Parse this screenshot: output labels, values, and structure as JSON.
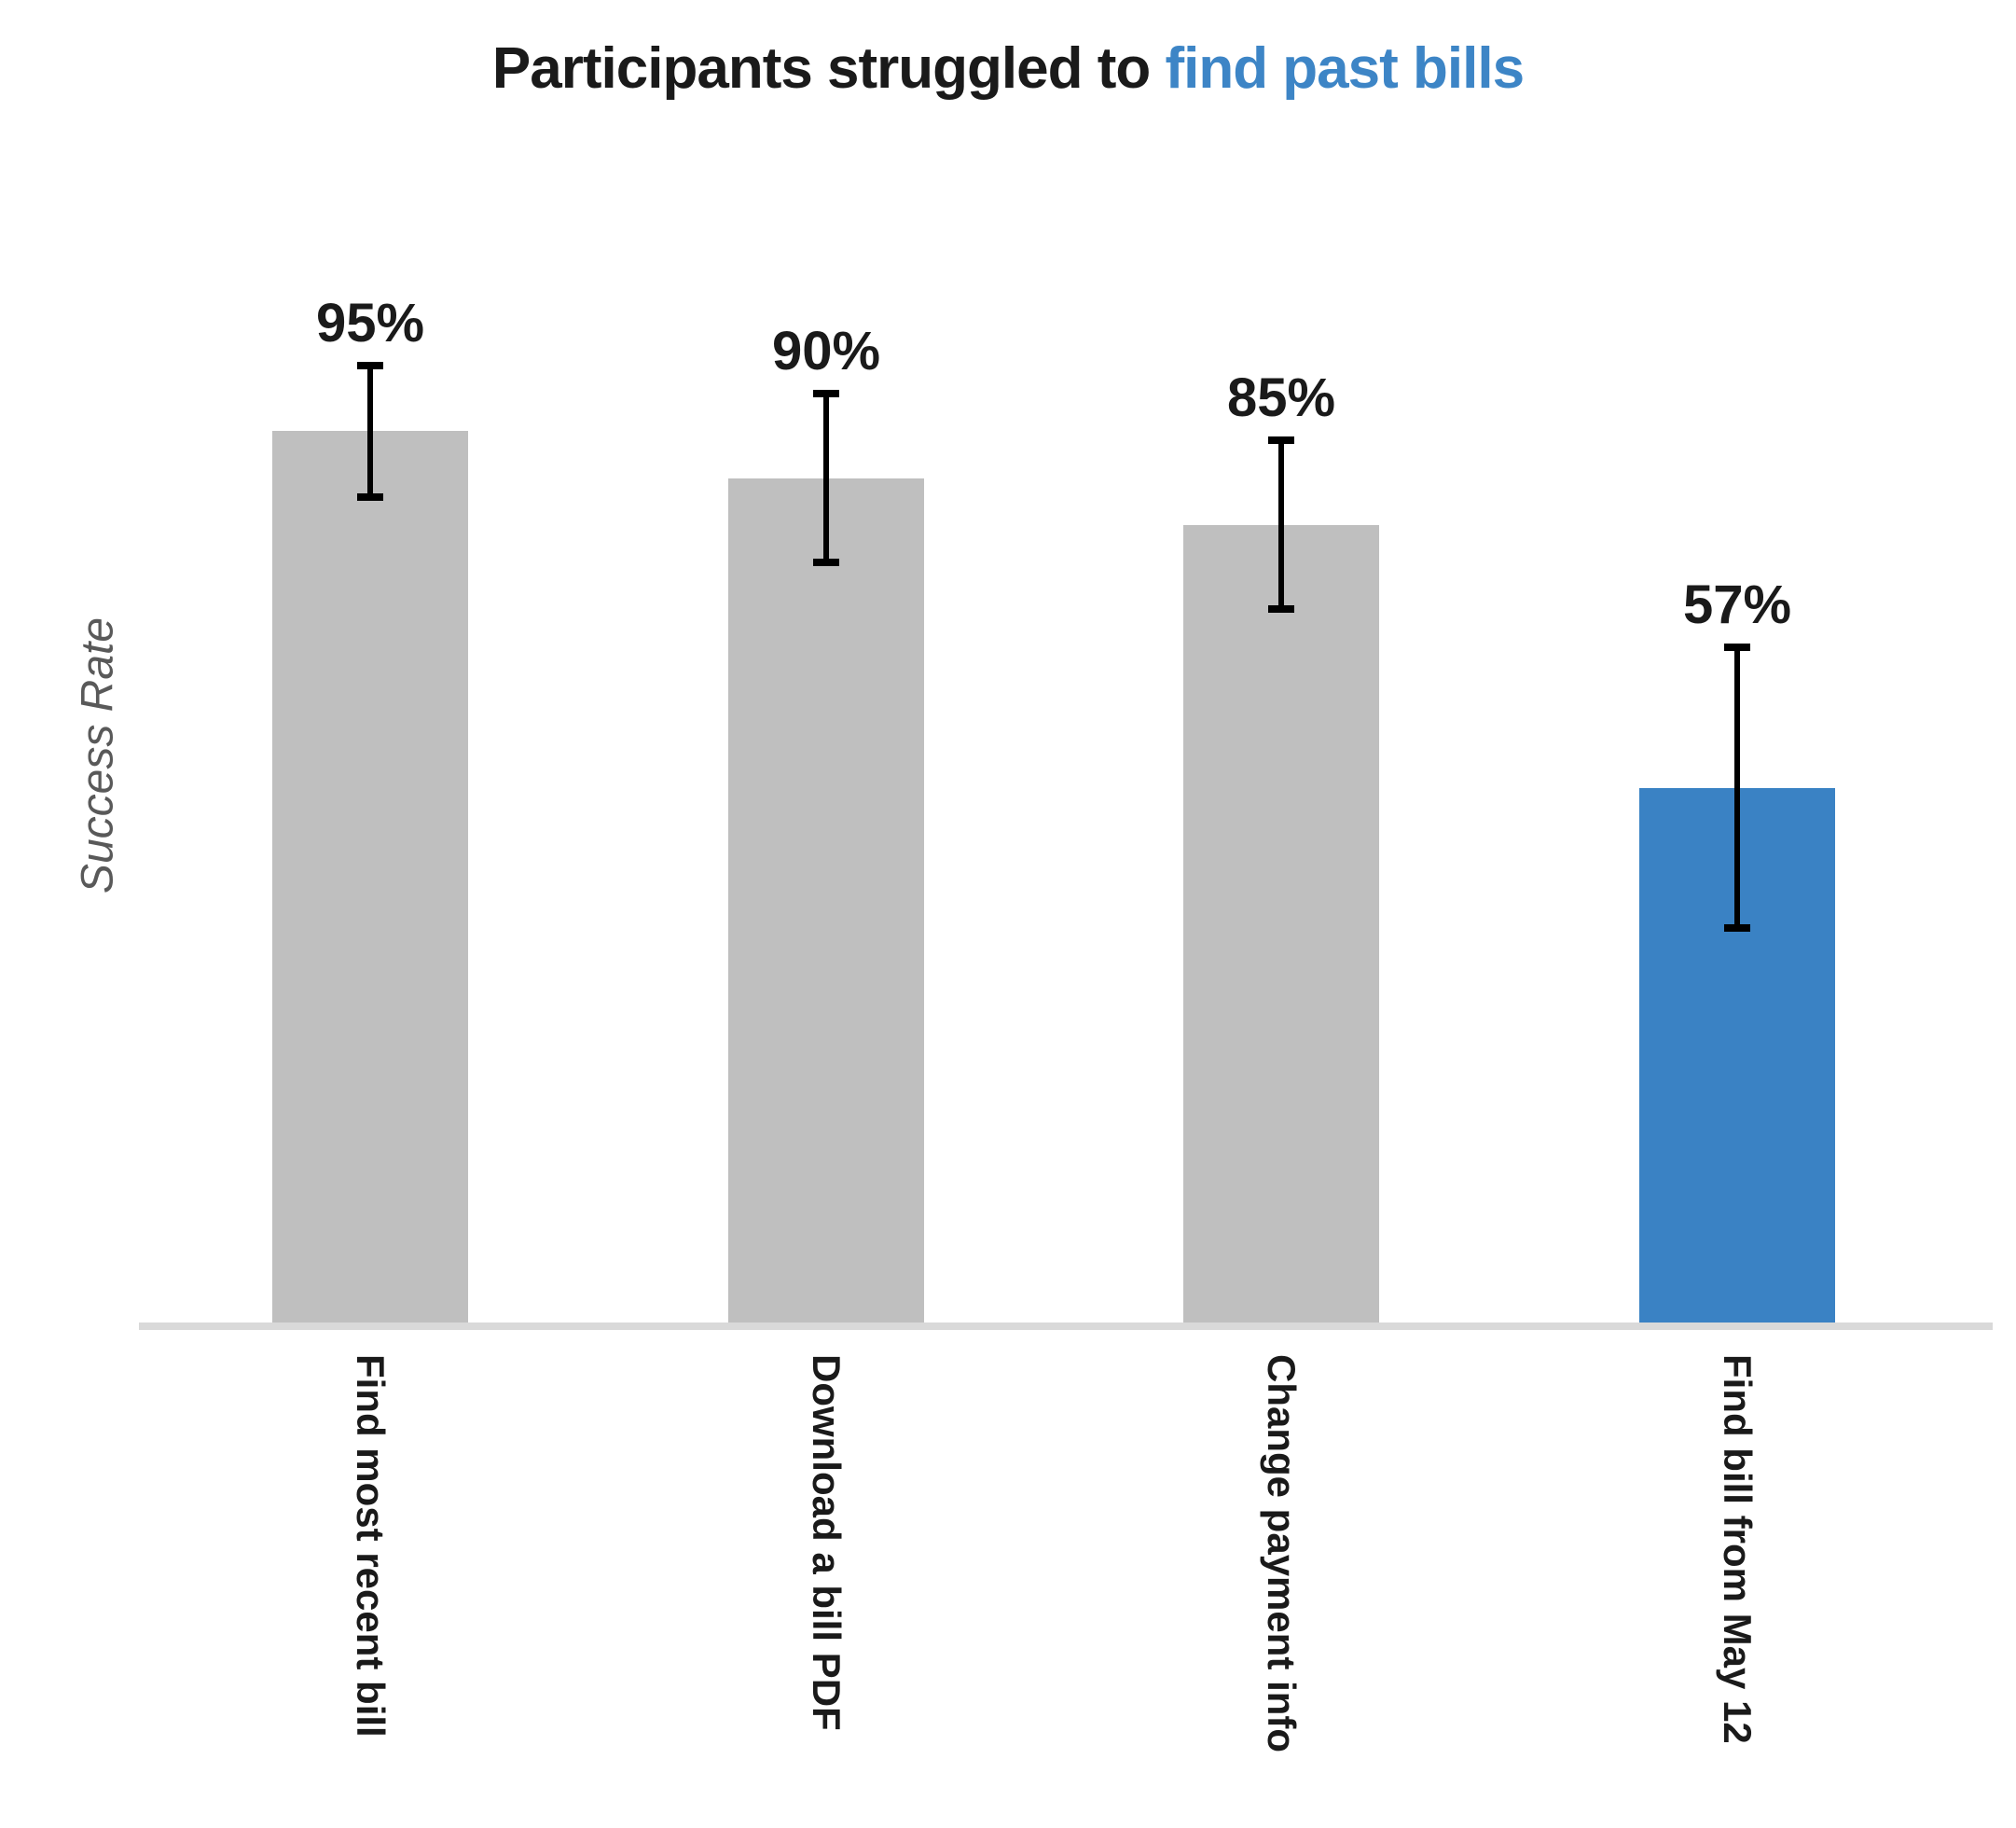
{
  "title": {
    "prefix": "Participants struggled to ",
    "highlight": "find past bills"
  },
  "y_axis_label": "Success Rate",
  "colors": {
    "bar_default": "#bfbfbf",
    "bar_highlight": "#3a82c4",
    "title_highlight": "#3d85c6",
    "axis_line": "#d9d9d9",
    "error_bar": "#000000",
    "text_primary": "#1a1a1a",
    "text_muted": "#595959"
  },
  "chart_data": {
    "type": "bar",
    "title": "Participants struggled to find past bills",
    "xlabel": "",
    "ylabel": "Success Rate",
    "categories": [
      "Find most recent bill",
      "Download a bill PDF",
      "Change payment info",
      "Find bill from May 12"
    ],
    "values": [
      95,
      90,
      85,
      57
    ],
    "value_labels": [
      "95%",
      "90%",
      "85%",
      "57%"
    ],
    "error_margins": [
      7,
      9,
      9,
      15
    ],
    "error_ranges": [
      [
        88,
        102
      ],
      [
        81,
        99
      ],
      [
        76,
        94
      ],
      [
        42,
        72
      ]
    ],
    "highlighted_index": 3,
    "bar_colors": [
      "#bfbfbf",
      "#bfbfbf",
      "#bfbfbf",
      "#3a82c4"
    ],
    "ylim": [
      0,
      100
    ],
    "grid": false,
    "legend": false
  }
}
